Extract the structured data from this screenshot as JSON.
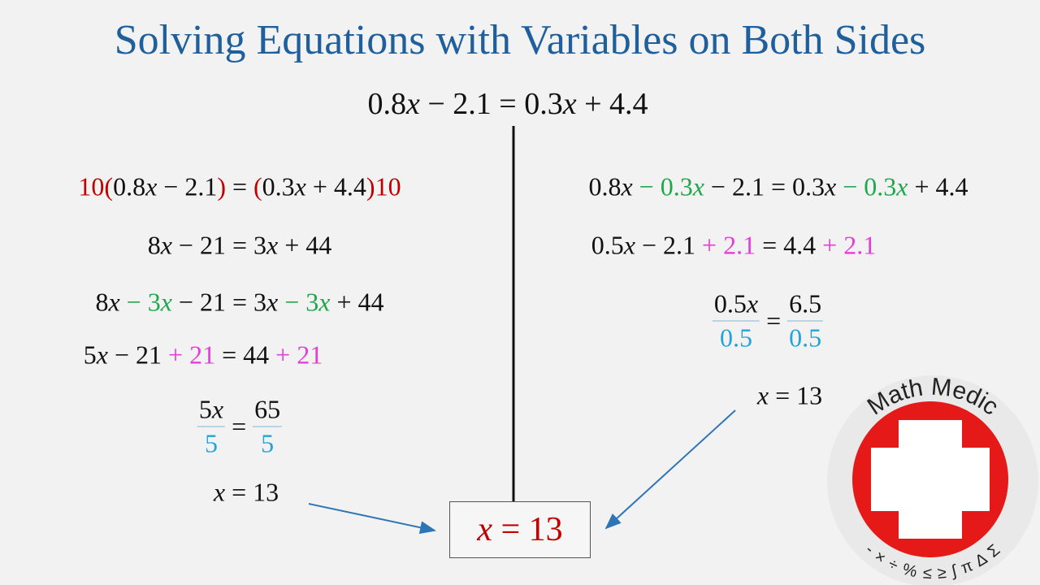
{
  "header": {
    "title": "Solving Equations with Variables on Both Sides"
  },
  "equation": "0.8x − 2.1 = 0.3x + 4.4",
  "left_steps": [
    {
      "segments": [
        {
          "text": "10(",
          "color": "#c00000"
        },
        {
          "text": "0.8x − 2.1",
          "color": "#111111"
        },
        {
          "text": ")",
          "color": "#c00000"
        },
        {
          "text": " = ",
          "color": "#111111"
        },
        {
          "text": "(",
          "color": "#c00000"
        },
        {
          "text": "0.3x + 4.4",
          "color": "#111111"
        },
        {
          "text": ")10",
          "color": "#c00000"
        }
      ]
    },
    {
      "segments": [
        {
          "text": "8x − 21 = 3x + 44",
          "color": "#111111"
        }
      ]
    },
    {
      "segments": [
        {
          "text": "8x ",
          "color": "#111111"
        },
        {
          "text": "− 3x",
          "color": "#1ea84b"
        },
        {
          "text": " − 21 = 3x ",
          "color": "#111111"
        },
        {
          "text": "− 3x",
          "color": "#1ea84b"
        },
        {
          "text": " + 44",
          "color": "#111111"
        }
      ]
    },
    {
      "segments": [
        {
          "text": "5x − 21 ",
          "color": "#111111"
        },
        {
          "text": "+ 21",
          "color": "#e23fd9"
        },
        {
          "text": " = 44 ",
          "color": "#111111"
        },
        {
          "text": "+ 21",
          "color": "#e23fd9"
        }
      ]
    },
    {
      "fraction": {
        "left": {
          "numerator": "5x",
          "denominator": "5"
        },
        "relation": "=",
        "right": {
          "numerator": "65",
          "denominator": "5"
        },
        "denominator_color": "#22a3d9"
      }
    },
    {
      "segments": [
        {
          "text": "x = 13",
          "color": "#111111"
        }
      ]
    }
  ],
  "right_steps": [
    {
      "segments": [
        {
          "text": "0.8x ",
          "color": "#111111"
        },
        {
          "text": "− 0.3x",
          "color": "#1ea84b"
        },
        {
          "text": " − 2.1 = 0.3x ",
          "color": "#111111"
        },
        {
          "text": "− 0.3x",
          "color": "#1ea84b"
        },
        {
          "text": " + 4.4",
          "color": "#111111"
        }
      ]
    },
    {
      "segments": [
        {
          "text": "0.5x − 2.1 ",
          "color": "#111111"
        },
        {
          "text": "+ 2.1",
          "color": "#e23fd9"
        },
        {
          "text": " = 4.4 ",
          "color": "#111111"
        },
        {
          "text": "+ 2.1",
          "color": "#e23fd9"
        }
      ]
    },
    {
      "fraction": {
        "left": {
          "numerator": "0.5x",
          "denominator": "0.5"
        },
        "relation": "=",
        "right": {
          "numerator": "6.5",
          "denominator": "0.5"
        },
        "denominator_color": "#22a3d9"
      }
    },
    {
      "segments": [
        {
          "text": "x = 13",
          "color": "#111111"
        }
      ]
    }
  ],
  "answer": "x = 13",
  "logo": {
    "name": "Math Medic",
    "symbols": "- × ÷ % ≤ ≥ ∫ π Δ Σ"
  }
}
